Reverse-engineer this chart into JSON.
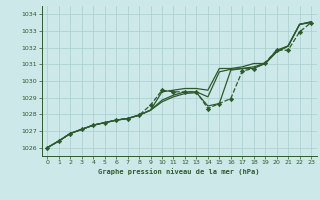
{
  "bg_color": "#cce8e8",
  "grid_color": "#aacece",
  "line_color": "#2d5a2d",
  "title": "Graphe pression niveau de la mer (hPa)",
  "xlim": [
    -0.5,
    23.5
  ],
  "ylim": [
    1025.5,
    1034.5
  ],
  "yticks": [
    1026,
    1027,
    1028,
    1029,
    1030,
    1031,
    1032,
    1033,
    1034
  ],
  "xticks": [
    0,
    1,
    2,
    3,
    4,
    5,
    6,
    7,
    8,
    9,
    10,
    11,
    12,
    13,
    14,
    15,
    16,
    17,
    18,
    19,
    20,
    21,
    22,
    23
  ],
  "line_smooth": {
    "x": [
      0,
      1,
      2,
      3,
      4,
      5,
      6,
      7,
      8,
      9,
      10,
      11,
      12,
      13,
      14,
      15,
      16,
      17,
      18,
      19,
      20,
      21,
      22,
      23
    ],
    "y": [
      1026.0,
      1026.4,
      1026.85,
      1027.1,
      1027.35,
      1027.5,
      1027.65,
      1027.75,
      1027.95,
      1028.25,
      1028.75,
      1029.05,
      1029.25,
      1029.3,
      1028.5,
      1028.65,
      1030.65,
      1030.75,
      1030.75,
      1031.05,
      1031.75,
      1032.1,
      1033.4,
      1033.5
    ]
  },
  "line_upper": {
    "x": [
      0,
      1,
      2,
      3,
      4,
      5,
      6,
      7,
      8,
      9,
      10,
      11,
      12,
      13,
      14,
      15,
      16,
      17,
      18,
      19,
      20,
      21,
      22,
      23
    ],
    "y": [
      1026.0,
      1026.4,
      1026.85,
      1027.1,
      1027.35,
      1027.5,
      1027.65,
      1027.75,
      1027.95,
      1028.25,
      1029.35,
      1029.45,
      1029.55,
      1029.55,
      1029.45,
      1030.75,
      1030.75,
      1030.85,
      1031.05,
      1031.05,
      1031.85,
      1032.1,
      1033.4,
      1033.55
    ]
  },
  "line_mid1": {
    "x": [
      0,
      1,
      2,
      3,
      4,
      5,
      6,
      7,
      8,
      9,
      10,
      11,
      12,
      13,
      14,
      15,
      16,
      17,
      18,
      19,
      20,
      21,
      22,
      23
    ],
    "y": [
      1026.0,
      1026.4,
      1026.85,
      1027.1,
      1027.35,
      1027.5,
      1027.65,
      1027.75,
      1027.95,
      1028.25,
      1028.85,
      1029.15,
      1029.35,
      1029.35,
      1029.05,
      1030.55,
      1030.7,
      1030.75,
      1030.85,
      1031.05,
      1031.75,
      1032.1,
      1033.4,
      1033.55
    ]
  },
  "line_marker": {
    "x": [
      0,
      1,
      2,
      3,
      4,
      5,
      6,
      7,
      8,
      9,
      10,
      11,
      12,
      13,
      14,
      15,
      16,
      17,
      18,
      19,
      20,
      21,
      22,
      23
    ],
    "y": [
      1026.0,
      1026.4,
      1026.85,
      1027.1,
      1027.35,
      1027.5,
      1027.65,
      1027.75,
      1027.95,
      1028.55,
      1029.45,
      1029.35,
      1029.35,
      1029.35,
      1028.35,
      1028.65,
      1028.95,
      1030.6,
      1030.75,
      1031.1,
      1031.85,
      1031.85,
      1032.95,
      1033.5
    ]
  }
}
